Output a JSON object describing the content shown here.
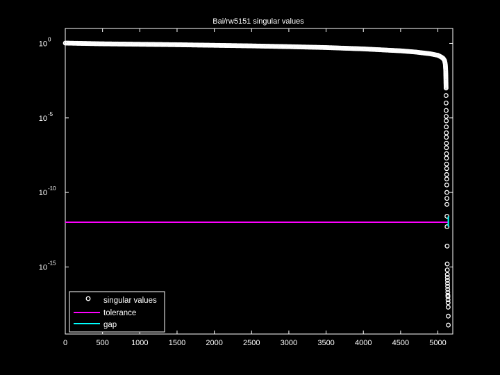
{
  "chart_data": {
    "type": "scatter",
    "title": "Bai/rw5151 singular values",
    "xlabel": "",
    "ylabel": "",
    "xlim": [
      0,
      5200
    ],
    "ylim_log10": [
      -19.5,
      1
    ],
    "yscale": "log",
    "grid": false,
    "legend_position": "bottom-left",
    "x_ticks": [
      0,
      500,
      1000,
      1500,
      2000,
      2500,
      3000,
      3500,
      4000,
      4500,
      5000
    ],
    "y_ticks": [
      {
        "base": "10",
        "exp": "0",
        "value": 1
      },
      {
        "base": "10",
        "exp": "-5",
        "value": 1e-05
      },
      {
        "base": "10",
        "exp": "-10",
        "value": 1e-10
      },
      {
        "base": "10",
        "exp": "-15",
        "value": 1e-15
      }
    ],
    "series": [
      {
        "name": "singular values",
        "marker": "circle",
        "color": "#ffffff",
        "curve_x": [
          1,
          500,
          1000,
          1500,
          2000,
          2500,
          3000,
          3500,
          4000,
          4500,
          4700,
          4900,
          5000,
          5040,
          5070,
          5090,
          5100,
          5105,
          5108,
          5110
        ],
        "curve_log10": [
          0.02,
          -0.03,
          -0.06,
          -0.09,
          -0.13,
          -0.17,
          -0.22,
          -0.28,
          -0.37,
          -0.5,
          -0.58,
          -0.7,
          -0.8,
          -0.9,
          -1.0,
          -1.15,
          -1.4,
          -1.8,
          -2.4,
          -3.0
        ],
        "tail_x": [
          5110,
          5111,
          5112,
          5112,
          5113,
          5113,
          5114,
          5114,
          5115,
          5115,
          5116,
          5116,
          5117,
          5118,
          5118,
          5119,
          5119,
          5120,
          5121,
          5121,
          5122,
          5123,
          5124,
          5125,
          5126,
          5127,
          5128,
          5129,
          5130,
          5131,
          5132,
          5133,
          5134,
          5135,
          5136,
          5137,
          5138,
          5139,
          5140
        ],
        "tail_log10": [
          -3.5,
          -4.0,
          -4.5,
          -4.9,
          -5.2,
          -5.6,
          -6.0,
          -6.3,
          -6.7,
          -7.0,
          -7.4,
          -7.7,
          -8.1,
          -8.4,
          -8.8,
          -9.1,
          -9.5,
          -10.0,
          -10.4,
          -10.8,
          -11.6,
          -12.3,
          -13.6,
          -14.8,
          -15.2,
          -15.5,
          -15.7,
          -15.9,
          -16.1,
          -16.3,
          -16.5,
          -16.7,
          -16.9,
          -17.0,
          -17.2,
          -17.4,
          -17.7,
          -18.3,
          -18.9
        ]
      },
      {
        "name": "tolerance",
        "type": "line",
        "color": "#ff00ff",
        "x": [
          0,
          5140
        ],
        "y_log10": [
          -12.0,
          -12.0
        ]
      },
      {
        "name": "gap",
        "type": "line",
        "color": "#00ffff",
        "x": [
          5140,
          5140
        ],
        "y_log10": [
          -11.6,
          -12.3
        ]
      }
    ]
  }
}
